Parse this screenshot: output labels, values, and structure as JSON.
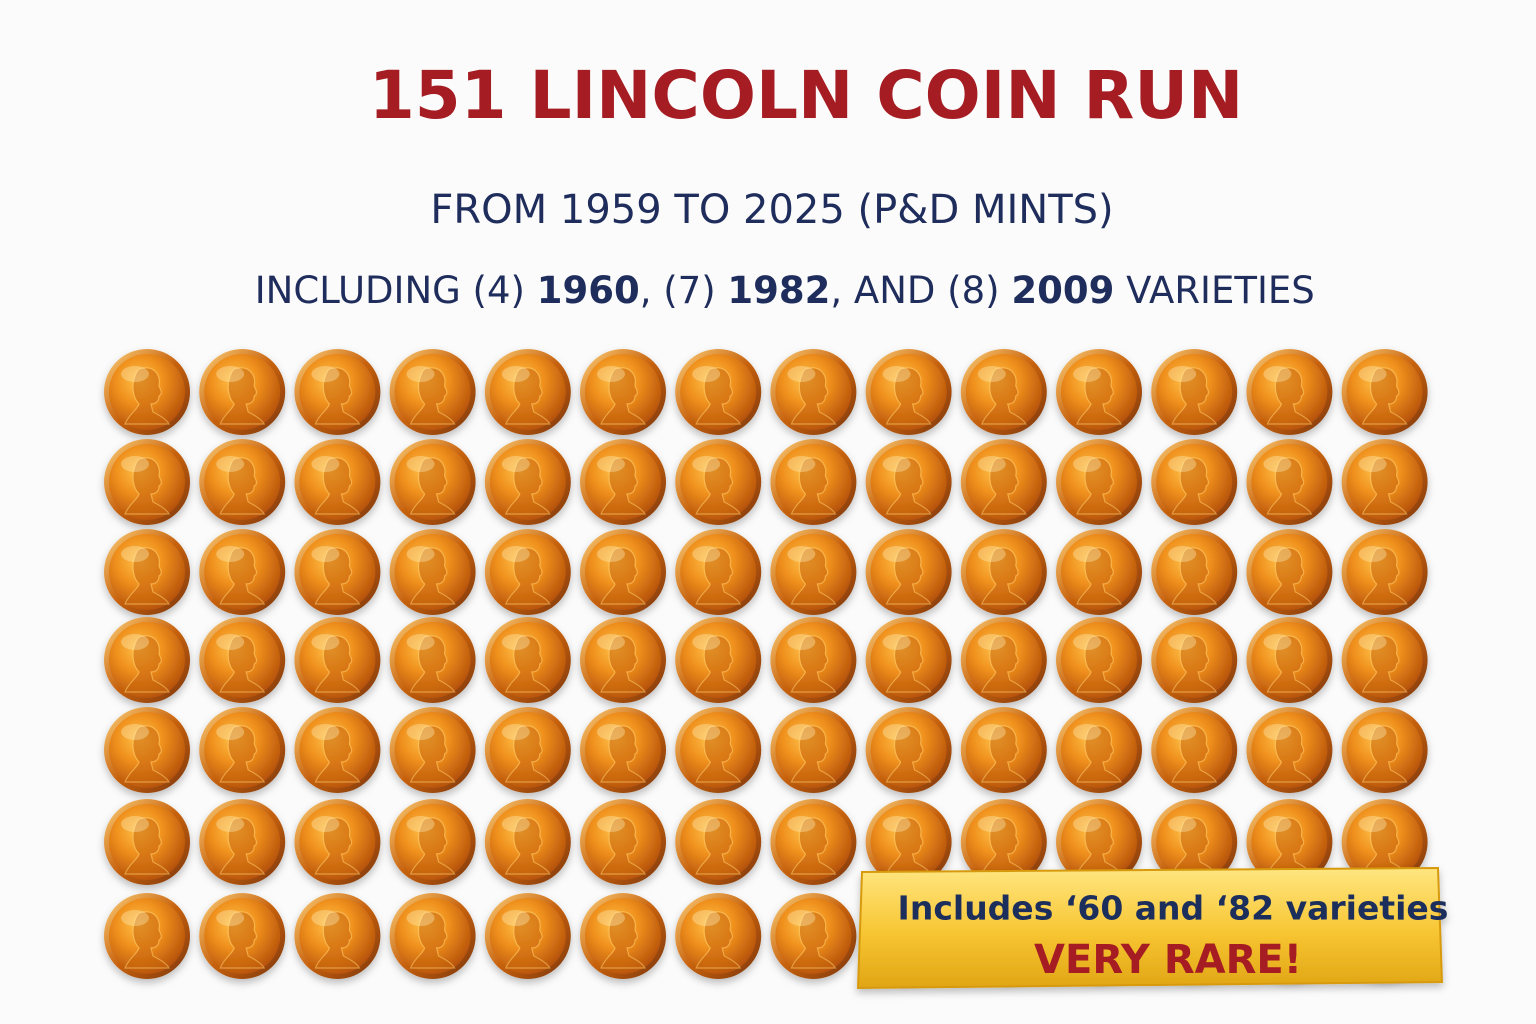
{
  "title": "151 LINCOLN COIN RUN",
  "subtitle": "FROM 1959 TO 2025 (P&D MINTS)",
  "varieties_line": {
    "segments": [
      "INCLUDING (4) ",
      "1960",
      ", (7) ",
      "1982",
      ", AND (8) ",
      "2009",
      " VARIETIES"
    ]
  },
  "banner": {
    "line1": "Includes ‘60 and ‘82 varieties",
    "line2": "VERY RARE!"
  }
}
